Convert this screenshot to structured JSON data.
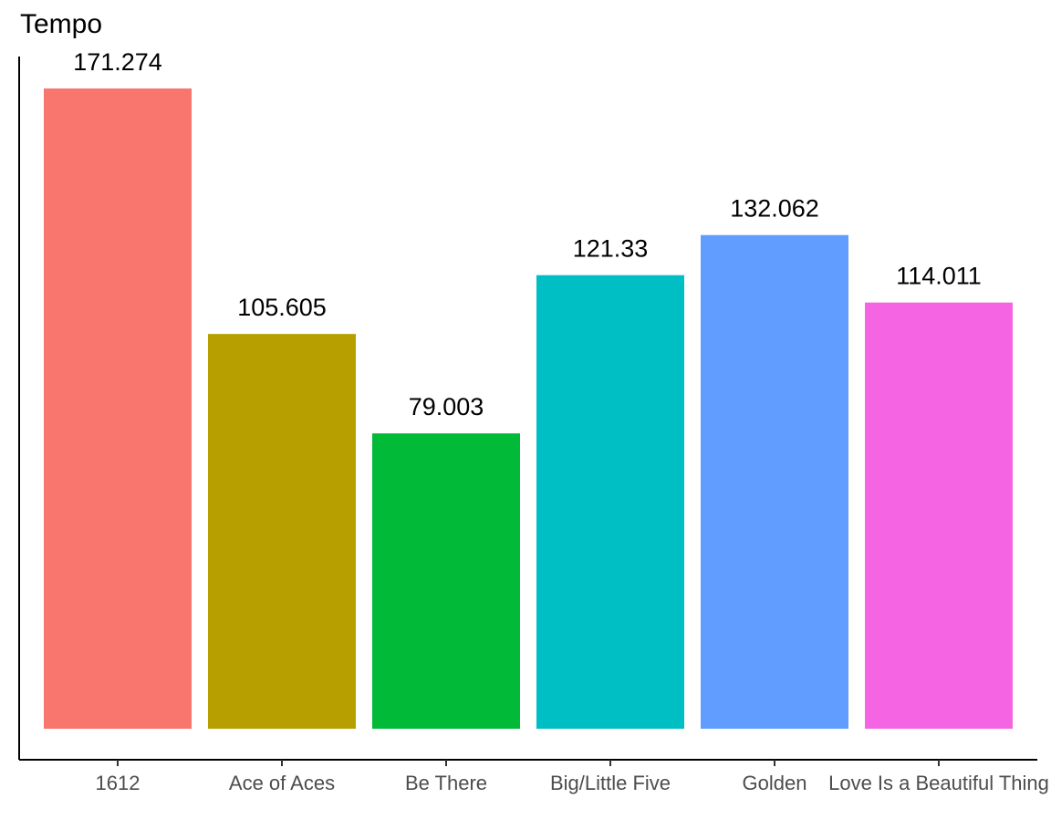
{
  "chart_data": {
    "type": "bar",
    "title": "Tempo",
    "xlabel": "",
    "ylabel": "",
    "categories": [
      "1612",
      "Ace of Aces",
      "Be There",
      "Big/Little Five",
      "Golden",
      "Love Is a Beautiful Thing"
    ],
    "values": [
      171.274,
      105.605,
      79.003,
      121.33,
      132.062,
      114.011
    ],
    "value_labels": [
      "171.274",
      "105.605",
      "79.003",
      "121.33",
      "132.062",
      "114.011"
    ],
    "colors": [
      "#F8766D",
      "#B79F00",
      "#00BA38",
      "#00BFC4",
      "#619CFF",
      "#F564E3"
    ],
    "ylim": [
      0,
      171.274
    ],
    "grid": false,
    "legend": "none",
    "axis_color": "#000000",
    "tick_label_color": "#4d4d4d"
  }
}
